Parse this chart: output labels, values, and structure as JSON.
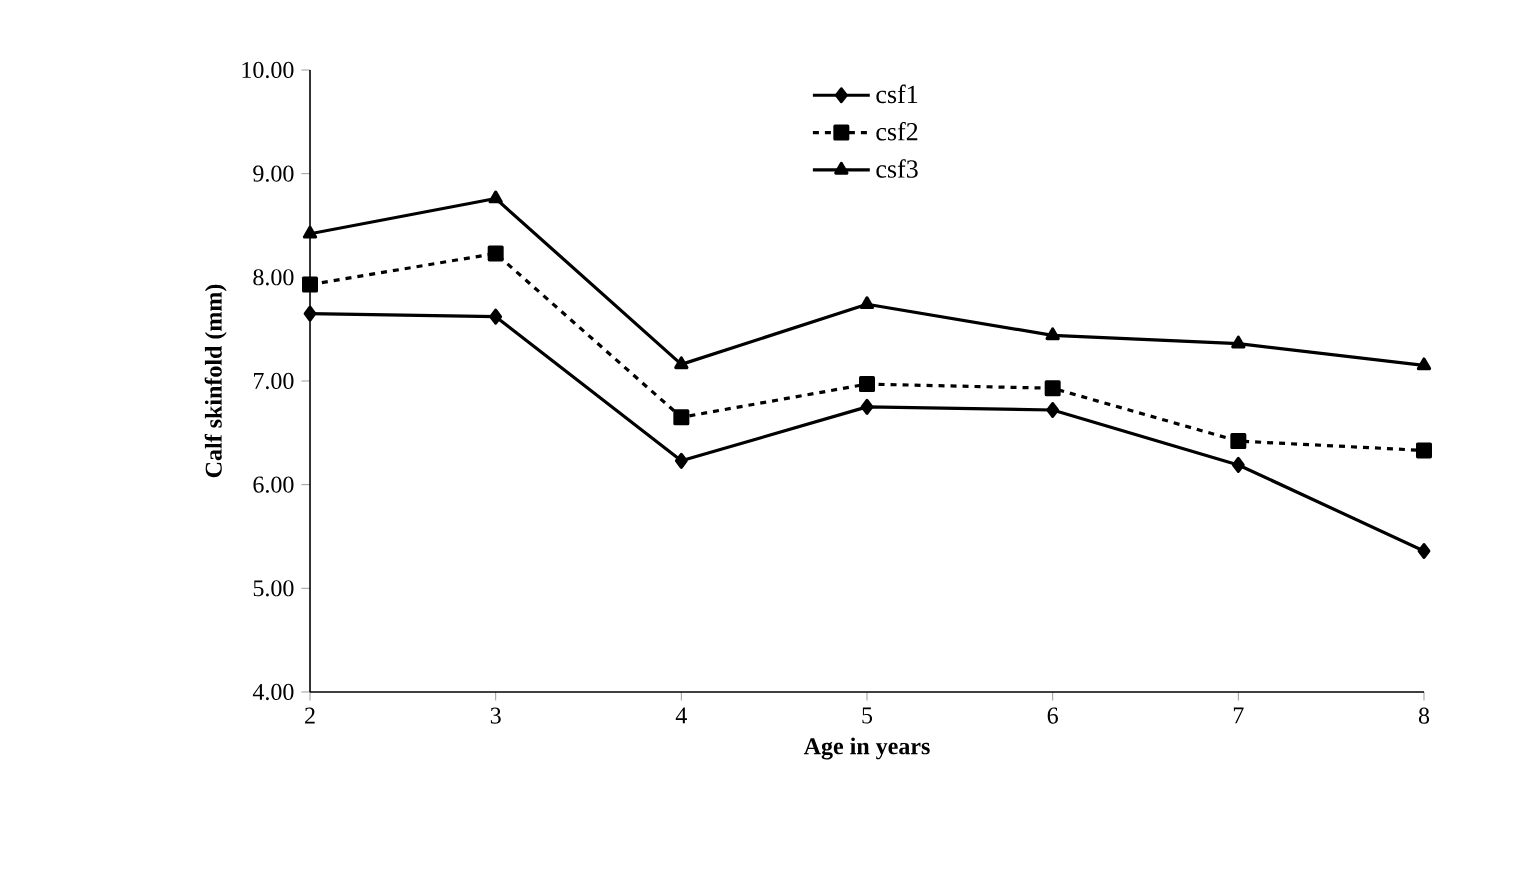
{
  "chart_data": {
    "type": "line",
    "xlabel": "Age in years",
    "ylabel": "Calf skinfold (mm)",
    "x": [
      2,
      3,
      4,
      5,
      6,
      7,
      8
    ],
    "series": [
      {
        "name": "csf1",
        "color": "#000000",
        "marker": "diamond",
        "line_style": "solid",
        "values": [
          7.65,
          7.62,
          6.23,
          6.75,
          6.72,
          6.19,
          5.36
        ]
      },
      {
        "name": "csf2",
        "color": "#000000",
        "marker": "square",
        "line_style": "dashed",
        "values": [
          7.93,
          8.23,
          6.65,
          6.97,
          6.93,
          6.42,
          6.33
        ]
      },
      {
        "name": "csf3",
        "color": "#000000",
        "marker": "triangle",
        "line_style": "solid",
        "values": [
          8.42,
          8.76,
          7.16,
          7.74,
          7.44,
          7.36,
          7.15
        ]
      }
    ],
    "xlim": [
      2,
      8
    ],
    "xticks": [
      2,
      3,
      4,
      5,
      6,
      7,
      8
    ],
    "ylim": [
      4,
      10
    ],
    "yticks": [
      {
        "value": 4,
        "label": "4.00"
      },
      {
        "value": 5,
        "label": "5.00"
      },
      {
        "value": 6,
        "label": "6.00"
      },
      {
        "value": 7,
        "label": "7.00"
      },
      {
        "value": 8,
        "label": "8.00"
      },
      {
        "value": 9,
        "label": "9.00"
      },
      {
        "value": 10,
        "label": "10.00"
      }
    ],
    "legend": "top",
    "grid": false
  }
}
